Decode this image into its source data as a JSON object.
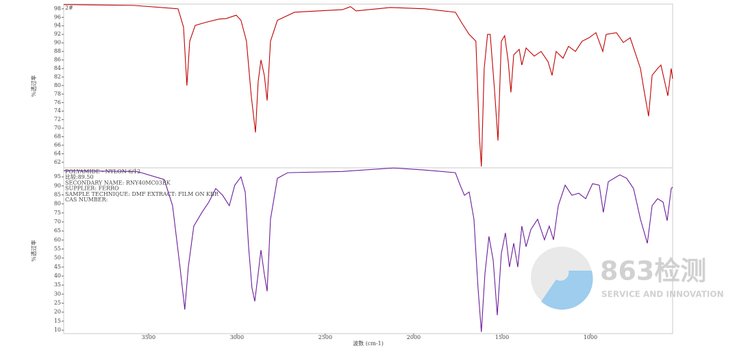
{
  "chart_data": [
    {
      "type": "line",
      "label": "2#",
      "ylabel": "%透过率",
      "color": "#c00000",
      "xlim": [
        3980,
        535
      ],
      "ylim": [
        60.7,
        99.1
      ],
      "yticks": [
        62,
        64,
        66,
        68,
        70,
        72,
        74,
        76,
        78,
        80,
        82,
        84,
        86,
        88,
        90,
        92,
        94,
        96,
        98
      ],
      "x": [
        3980,
        3585,
        3333,
        3302,
        3283,
        3267,
        3236,
        3178,
        3101,
        3062,
        3004,
        2977,
        2946,
        2919,
        2895,
        2880,
        2864,
        2845,
        2829,
        2810,
        2771,
        2674,
        2403,
        2357,
        2326,
        2132,
        1938,
        1764,
        1725,
        1686,
        1648,
        1628,
        1617,
        1601,
        1582,
        1567,
        1543,
        1523,
        1504,
        1485,
        1465,
        1450,
        1434,
        1403,
        1388,
        1364,
        1318,
        1279,
        1240,
        1217,
        1194,
        1155,
        1124,
        1085,
        1047,
        1008,
        969,
        930,
        911,
        853,
        814,
        775,
        717,
        698,
        671,
        651,
        620,
        601,
        562,
        543,
        535
      ],
      "values": [
        99,
        98.8,
        98,
        93.7,
        80,
        90.4,
        94.1,
        94.8,
        95.6,
        95.7,
        96.5,
        95.3,
        90.4,
        77.6,
        69,
        80.8,
        86,
        82.4,
        76.5,
        90.4,
        95.3,
        97.2,
        97.8,
        98.5,
        97.5,
        98.3,
        98,
        97.2,
        94.5,
        92,
        90.4,
        68,
        61,
        84,
        92,
        92,
        79.2,
        67.1,
        90.4,
        91.7,
        85.6,
        78.4,
        87.2,
        88.5,
        84.8,
        88.8,
        86.9,
        88,
        85.6,
        82.4,
        88,
        86.4,
        89.2,
        88,
        90.4,
        91.2,
        92.4,
        88,
        92,
        92.4,
        90.1,
        91.2,
        84,
        79.2,
        72.8,
        82.4,
        84,
        84.8,
        77.6,
        84,
        81.6
      ]
    },
    {
      "type": "line",
      "ylabel": "%透过率",
      "xlabel": "波数 (cm-1)",
      "color": "#6a1b9a",
      "annotations": [
        "POLYAMIDE - NYLON 6/12",
        "比较:89.50",
        "SECONDARY NAME:  RNY40MC03BK",
        "SUPPLIER:  FERRO",
        "SAMPLE TECHNIQUE:  DMF EXTRACT: FILM ON KBR",
        "CAS NUMBER:"
      ],
      "xlim": [
        3980,
        535
      ],
      "ylim": [
        8.1,
        100
      ],
      "xticks": [
        3500,
        3000,
        2500,
        2000,
        1500,
        1000
      ],
      "yticks": [
        10,
        15,
        20,
        25,
        30,
        35,
        40,
        45,
        50,
        55,
        60,
        65,
        70,
        75,
        80,
        85,
        90,
        95
      ],
      "x": [
        3980,
        3565,
        3411,
        3364,
        3322,
        3295,
        3275,
        3244,
        3198,
        3159,
        3120,
        3081,
        3043,
        3012,
        2977,
        2953,
        2934,
        2915,
        2899,
        2880,
        2864,
        2845,
        2829,
        2810,
        2771,
        2713,
        2403,
        2113,
        1938,
        1764,
        1737,
        1713,
        1686,
        1659,
        1636,
        1617,
        1597,
        1574,
        1550,
        1527,
        1504,
        1481,
        1458,
        1434,
        1411,
        1388,
        1364,
        1337,
        1299,
        1260,
        1233,
        1209,
        1182,
        1143,
        1105,
        1066,
        1027,
        988,
        950,
        927,
        899,
        834,
        795,
        756,
        717,
        678,
        651,
        620,
        589,
        566,
        543,
        535
      ],
      "values": [
        98.4,
        98,
        93.5,
        79,
        45,
        21.4,
        45,
        67.7,
        75.3,
        81,
        88.5,
        84.8,
        79,
        90.4,
        95,
        86.6,
        56.3,
        33.5,
        26,
        41.1,
        54.4,
        41.1,
        31.6,
        71.5,
        94.2,
        97.3,
        98,
        99.9,
        98.8,
        97.3,
        90.4,
        84.8,
        86.6,
        71.5,
        33.5,
        9,
        41.1,
        62,
        48.7,
        18.3,
        52.5,
        63.9,
        45,
        58.2,
        45,
        67.7,
        56.3,
        65.8,
        71.5,
        60.1,
        67.7,
        60.1,
        79,
        90.4,
        84.8,
        85.9,
        82.9,
        91.2,
        90.4,
        75.3,
        92.3,
        96.1,
        94.2,
        88.5,
        71.5,
        58.2,
        79,
        82.9,
        81,
        70.7,
        88.5,
        89.3
      ]
    }
  ],
  "watermark": {
    "title": "863检测",
    "subtitle": "SERVICE AND INNOVATION"
  }
}
